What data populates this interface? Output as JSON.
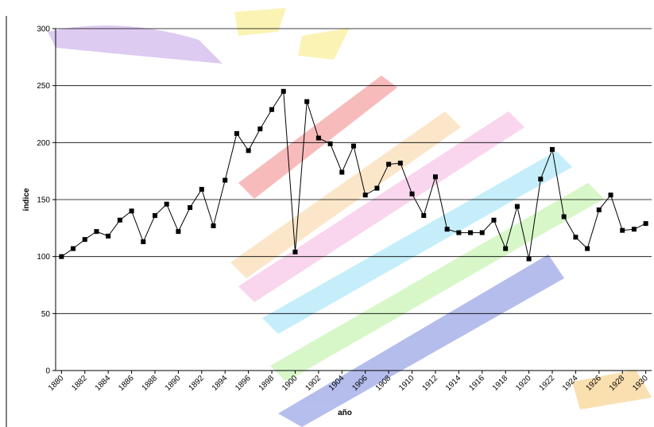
{
  "chart_data": {
    "type": "line",
    "x_label": "año",
    "y_label": "índice",
    "x": [
      1880,
      1881,
      1882,
      1883,
      1884,
      1885,
      1886,
      1887,
      1888,
      1889,
      1890,
      1891,
      1892,
      1893,
      1894,
      1895,
      1896,
      1897,
      1898,
      1899,
      1900,
      1901,
      1902,
      1903,
      1904,
      1905,
      1906,
      1907,
      1908,
      1909,
      1910,
      1911,
      1912,
      1913,
      1914,
      1915,
      1916,
      1917,
      1918,
      1919,
      1920,
      1921,
      1922,
      1923,
      1924,
      1925,
      1926,
      1927,
      1928,
      1929,
      1930
    ],
    "series": [
      {
        "color": "#000000",
        "values": [
          100,
          107,
          115,
          122,
          118,
          132,
          140,
          113,
          136,
          146,
          122,
          143,
          159,
          127,
          167,
          208,
          193,
          212,
          229,
          245,
          104,
          236,
          204,
          199,
          174,
          197,
          154,
          160,
          181,
          182,
          155,
          136,
          170,
          124,
          121,
          121,
          121,
          132,
          107,
          144,
          98,
          168,
          194,
          135,
          117,
          107,
          141,
          154,
          123,
          124,
          129
        ]
      }
    ],
    "xlim": [
      1879.5,
      1930.5
    ],
    "xticks": [
      1880,
      1882,
      1884,
      1886,
      1888,
      1890,
      1892,
      1894,
      1896,
      1898,
      1900,
      1902,
      1904,
      1906,
      1908,
      1910,
      1912,
      1914,
      1916,
      1918,
      1920,
      1922,
      1924,
      1926,
      1928,
      1930
    ],
    "ylim": [
      0,
      300
    ],
    "yticks": [
      0,
      50,
      100,
      150,
      200,
      250,
      300
    ],
    "grid": true
  }
}
